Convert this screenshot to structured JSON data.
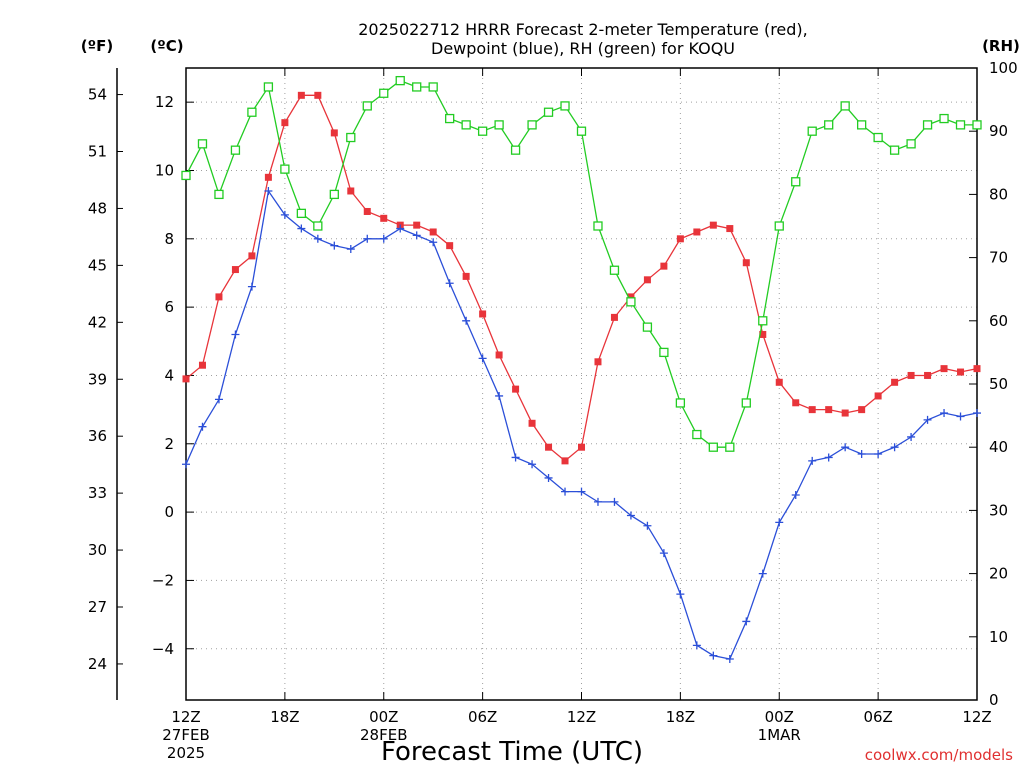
{
  "chart_data": {
    "type": "line",
    "title_line1": "2025022712 HRRR Forecast 2-meter Temperature (red),",
    "title_line2": "Dewpoint (blue), RH (green) for KOQU",
    "xlabel": "Forecast Time (UTC)",
    "credit": "coolwx.com/models",
    "unit_left_f": "(ºF)",
    "unit_left_c": "(ºC)",
    "unit_right": "(RH)",
    "x_range": [
      0,
      48
    ],
    "y_range_c": [
      -5.5,
      13.0
    ],
    "y_range_rh": [
      0,
      100
    ],
    "grid": true,
    "x_ticks": [
      {
        "h": 0,
        "label": "12Z",
        "sub1": "27FEB",
        "sub2": "2025"
      },
      {
        "h": 6,
        "label": "18Z",
        "sub1": "",
        "sub2": ""
      },
      {
        "h": 12,
        "label": "00Z",
        "sub1": "28FEB",
        "sub2": ""
      },
      {
        "h": 18,
        "label": "06Z",
        "sub1": "",
        "sub2": ""
      },
      {
        "h": 24,
        "label": "12Z",
        "sub1": "",
        "sub2": ""
      },
      {
        "h": 30,
        "label": "18Z",
        "sub1": "",
        "sub2": ""
      },
      {
        "h": 36,
        "label": "00Z",
        "sub1": "1MAR",
        "sub2": ""
      },
      {
        "h": 42,
        "label": "06Z",
        "sub1": "",
        "sub2": ""
      },
      {
        "h": 48,
        "label": "12Z",
        "sub1": "",
        "sub2": ""
      }
    ],
    "c_ticks": [
      12,
      10,
      8,
      6,
      4,
      2,
      0,
      -2,
      -4
    ],
    "c_tick_labels": [
      "12",
      "10",
      "8",
      "6",
      "4",
      "2",
      "0",
      "−2",
      "−4"
    ],
    "f_ticks": [
      54,
      51,
      48,
      45,
      42,
      39,
      36,
      33,
      30,
      27,
      24
    ],
    "rh_ticks": [
      100,
      90,
      80,
      70,
      60,
      50,
      40,
      30,
      20,
      10,
      0
    ],
    "colors": {
      "temperature": "#e8343a",
      "dewpoint": "#2b4fd8",
      "rh": "#22cc22",
      "grid": "#a0a0a0"
    },
    "series": [
      {
        "key": "temperature",
        "marker": "filled-square",
        "values": [
          3.9,
          4.3,
          6.3,
          7.1,
          7.5,
          9.8,
          11.4,
          12.2,
          12.2,
          11.1,
          9.4,
          8.8,
          8.6,
          8.4,
          8.4,
          8.2,
          7.8,
          6.9,
          5.8,
          4.6,
          3.6,
          2.6,
          1.9,
          1.5,
          1.9,
          4.4,
          5.7,
          6.3,
          6.8,
          7.2,
          8.0,
          8.2,
          8.4,
          8.3,
          7.3,
          5.2,
          3.8,
          3.2,
          3.0,
          3.0,
          2.9,
          3.0,
          3.4,
          3.8,
          4.0,
          4.0,
          4.2,
          4.1,
          4.2
        ]
      },
      {
        "key": "dewpoint",
        "marker": "plus",
        "values": [
          1.4,
          2.5,
          3.3,
          5.2,
          6.6,
          9.4,
          8.7,
          8.3,
          8.0,
          7.8,
          7.7,
          8.0,
          8.0,
          8.3,
          8.1,
          7.9,
          6.7,
          5.6,
          4.5,
          3.4,
          1.6,
          1.4,
          1.0,
          0.6,
          0.6,
          0.3,
          0.3,
          -0.1,
          -0.4,
          -1.2,
          -2.4,
          -3.9,
          -4.2,
          -4.3,
          -3.2,
          -1.8,
          -0.3,
          0.5,
          1.5,
          1.6,
          1.9,
          1.7,
          1.7,
          1.9,
          2.2,
          2.7,
          2.9,
          2.8,
          2.9
        ]
      },
      {
        "key": "rh",
        "marker": "open-square",
        "values": [
          83,
          88,
          80,
          87,
          93,
          97,
          84,
          77,
          75,
          80,
          89,
          94,
          96,
          98,
          97,
          97,
          92,
          91,
          90,
          91,
          87,
          91,
          93,
          94,
          90,
          75,
          68,
          63,
          59,
          55,
          47,
          42,
          40,
          40,
          47,
          60,
          75,
          82,
          90,
          91,
          94,
          91,
          89,
          87,
          88,
          91,
          92,
          91,
          91
        ]
      }
    ]
  }
}
